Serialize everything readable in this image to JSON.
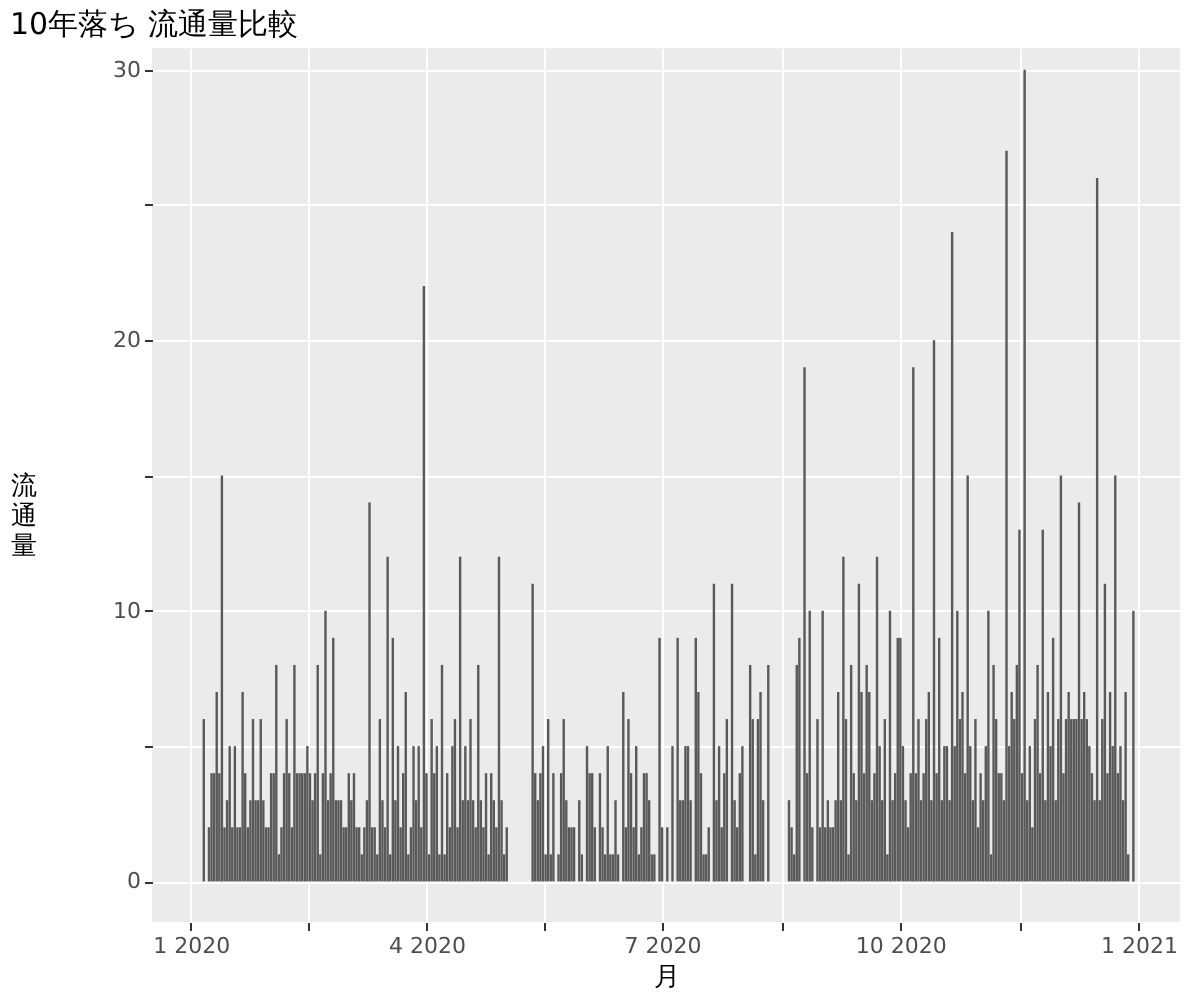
{
  "chart_data": {
    "type": "bar",
    "title": "10年落ち 流通量比較",
    "xlabel": "月",
    "ylabel": "流通量",
    "color": "#595959",
    "grid": true,
    "xlim": [
      "2019-12-17",
      "2021-01-17"
    ],
    "ylim": [
      -1.5,
      30.8
    ],
    "xticks": [
      {
        "value": "2020-01-01",
        "label": "1 2020"
      },
      {
        "value": "2020-02-15",
        "label": null
      },
      {
        "value": "2020-04-01",
        "label": "4 2020"
      },
      {
        "value": "2020-05-16",
        "label": null
      },
      {
        "value": "2020-07-01",
        "label": "7 2020"
      },
      {
        "value": "2020-08-16",
        "label": null
      },
      {
        "value": "2020-10-01",
        "label": "10 2020"
      },
      {
        "value": "2020-11-16",
        "label": null
      },
      {
        "value": "2021-01-01",
        "label": "1 2021"
      }
    ],
    "yticks": [
      0,
      {
        "value": 5,
        "label": null
      },
      10,
      {
        "value": 15,
        "label": null
      },
      20,
      {
        "value": 25,
        "label": null
      },
      30
    ],
    "x": [
      "2020-01-06",
      "2020-01-08",
      "2020-01-09",
      "2020-01-10",
      "2020-01-11",
      "2020-01-12",
      "2020-01-13",
      "2020-01-14",
      "2020-01-15",
      "2020-01-16",
      "2020-01-17",
      "2020-01-18",
      "2020-01-19",
      "2020-01-20",
      "2020-01-21",
      "2020-01-22",
      "2020-01-23",
      "2020-01-24",
      "2020-01-25",
      "2020-01-26",
      "2020-01-27",
      "2020-01-28",
      "2020-01-29",
      "2020-01-30",
      "2020-01-31",
      "2020-02-01",
      "2020-02-02",
      "2020-02-03",
      "2020-02-04",
      "2020-02-05",
      "2020-02-06",
      "2020-02-07",
      "2020-02-08",
      "2020-02-09",
      "2020-02-10",
      "2020-02-11",
      "2020-02-12",
      "2020-02-13",
      "2020-02-14",
      "2020-02-15",
      "2020-02-16",
      "2020-02-17",
      "2020-02-18",
      "2020-02-19",
      "2020-02-20",
      "2020-02-21",
      "2020-02-22",
      "2020-02-23",
      "2020-02-24",
      "2020-02-25",
      "2020-02-26",
      "2020-02-27",
      "2020-02-28",
      "2020-02-29",
      "2020-03-01",
      "2020-03-02",
      "2020-03-03",
      "2020-03-04",
      "2020-03-05",
      "2020-03-06",
      "2020-03-07",
      "2020-03-08",
      "2020-03-09",
      "2020-03-10",
      "2020-03-11",
      "2020-03-12",
      "2020-03-13",
      "2020-03-14",
      "2020-03-15",
      "2020-03-16",
      "2020-03-17",
      "2020-03-18",
      "2020-03-19",
      "2020-03-20",
      "2020-03-21",
      "2020-03-22",
      "2020-03-23",
      "2020-03-24",
      "2020-03-25",
      "2020-03-26",
      "2020-03-27",
      "2020-03-28",
      "2020-03-29",
      "2020-03-30",
      "2020-03-31",
      "2020-04-01",
      "2020-04-02",
      "2020-04-03",
      "2020-04-04",
      "2020-04-05",
      "2020-04-06",
      "2020-04-07",
      "2020-04-08",
      "2020-04-09",
      "2020-04-10",
      "2020-04-11",
      "2020-04-12",
      "2020-04-13",
      "2020-04-14",
      "2020-04-15",
      "2020-04-16",
      "2020-04-17",
      "2020-04-18",
      "2020-04-19",
      "2020-04-20",
      "2020-04-21",
      "2020-04-22",
      "2020-04-23",
      "2020-04-24",
      "2020-04-25",
      "2020-04-26",
      "2020-04-27",
      "2020-04-28",
      "2020-04-29",
      "2020-04-30",
      "2020-05-01",
      "2020-05-02",
      "2020-05-12",
      "2020-05-13",
      "2020-05-14",
      "2020-05-15",
      "2020-05-16",
      "2020-05-17",
      "2020-05-18",
      "2020-05-19",
      "2020-05-20",
      "2020-05-22",
      "2020-05-23",
      "2020-05-24",
      "2020-05-25",
      "2020-05-26",
      "2020-05-27",
      "2020-05-28",
      "2020-05-30",
      "2020-05-31",
      "2020-06-02",
      "2020-06-03",
      "2020-06-04",
      "2020-06-05",
      "2020-06-07",
      "2020-06-08",
      "2020-06-09",
      "2020-06-10",
      "2020-06-11",
      "2020-06-12",
      "2020-06-13",
      "2020-06-14",
      "2020-06-16",
      "2020-06-17",
      "2020-06-18",
      "2020-06-19",
      "2020-06-20",
      "2020-06-21",
      "2020-06-22",
      "2020-06-23",
      "2020-06-24",
      "2020-06-25",
      "2020-06-26",
      "2020-06-27",
      "2020-06-28",
      "2020-06-30",
      "2020-07-01",
      "2020-07-03",
      "2020-07-05",
      "2020-07-07",
      "2020-07-08",
      "2020-07-09",
      "2020-07-10",
      "2020-07-11",
      "2020-07-12",
      "2020-07-14",
      "2020-07-15",
      "2020-07-16",
      "2020-07-17",
      "2020-07-18",
      "2020-07-19",
      "2020-07-21",
      "2020-07-22",
      "2020-07-23",
      "2020-07-24",
      "2020-07-25",
      "2020-07-26",
      "2020-07-28",
      "2020-07-29",
      "2020-07-30",
      "2020-07-31",
      "2020-08-01",
      "2020-08-04",
      "2020-08-05",
      "2020-08-06",
      "2020-08-07",
      "2020-08-08",
      "2020-08-09",
      "2020-08-11",
      "2020-08-19",
      "2020-08-20",
      "2020-08-21",
      "2020-08-22",
      "2020-08-23",
      "2020-08-25",
      "2020-08-26",
      "2020-08-27",
      "2020-08-28",
      "2020-08-30",
      "2020-08-31",
      "2020-09-01",
      "2020-09-02",
      "2020-09-03",
      "2020-09-04",
      "2020-09-05",
      "2020-09-06",
      "2020-09-07",
      "2020-09-08",
      "2020-09-09",
      "2020-09-10",
      "2020-09-11",
      "2020-09-12",
      "2020-09-13",
      "2020-09-14",
      "2020-09-15",
      "2020-09-16",
      "2020-09-17",
      "2020-09-18",
      "2020-09-19",
      "2020-09-20",
      "2020-09-21",
      "2020-09-22",
      "2020-09-23",
      "2020-09-24",
      "2020-09-25",
      "2020-09-26",
      "2020-09-27",
      "2020-09-28",
      "2020-09-29",
      "2020-09-30",
      "2020-10-01",
      "2020-10-02",
      "2020-10-03",
      "2020-10-04",
      "2020-10-05",
      "2020-10-06",
      "2020-10-07",
      "2020-10-08",
      "2020-10-09",
      "2020-10-10",
      "2020-10-11",
      "2020-10-12",
      "2020-10-13",
      "2020-10-14",
      "2020-10-15",
      "2020-10-16",
      "2020-10-17",
      "2020-10-18",
      "2020-10-19",
      "2020-10-20",
      "2020-10-21",
      "2020-10-22",
      "2020-10-23",
      "2020-10-24",
      "2020-10-25",
      "2020-10-26",
      "2020-10-27",
      "2020-10-28",
      "2020-10-29",
      "2020-10-30",
      "2020-10-31",
      "2020-11-01",
      "2020-11-02",
      "2020-11-03",
      "2020-11-04",
      "2020-11-05",
      "2020-11-06",
      "2020-11-07",
      "2020-11-08",
      "2020-11-09",
      "2020-11-10",
      "2020-11-11",
      "2020-11-12",
      "2020-11-13",
      "2020-11-14",
      "2020-11-15",
      "2020-11-16",
      "2020-11-17",
      "2020-11-18",
      "2020-11-19",
      "2020-11-20",
      "2020-11-21",
      "2020-11-22",
      "2020-11-23",
      "2020-11-24",
      "2020-11-25",
      "2020-11-26",
      "2020-11-27",
      "2020-11-28",
      "2020-11-29",
      "2020-11-30",
      "2020-12-01",
      "2020-12-02",
      "2020-12-03",
      "2020-12-04",
      "2020-12-05",
      "2020-12-06",
      "2020-12-07",
      "2020-12-08",
      "2020-12-09",
      "2020-12-10",
      "2020-12-11",
      "2020-12-12",
      "2020-12-13",
      "2020-12-14",
      "2020-12-15",
      "2020-12-16",
      "2020-12-17",
      "2020-12-18",
      "2020-12-19",
      "2020-12-20",
      "2020-12-21",
      "2020-12-22",
      "2020-12-23",
      "2020-12-24",
      "2020-12-25",
      "2020-12-26",
      "2020-12-27",
      "2020-12-28",
      "2020-12-30"
    ],
    "values": [
      6,
      2,
      4,
      4,
      7,
      4,
      15,
      2,
      3,
      5,
      2,
      5,
      2,
      2,
      7,
      4,
      2,
      3,
      6,
      3,
      3,
      6,
      3,
      2,
      2,
      4,
      4,
      8,
      1,
      2,
      4,
      6,
      4,
      2,
      8,
      4,
      4,
      4,
      4,
      5,
      4,
      3,
      4,
      8,
      1,
      4,
      10,
      3,
      4,
      9,
      3,
      3,
      3,
      2,
      2,
      4,
      3,
      4,
      2,
      2,
      1,
      2,
      3,
      14,
      2,
      2,
      1,
      6,
      3,
      2,
      12,
      1,
      9,
      3,
      5,
      2,
      4,
      7,
      1,
      2,
      5,
      3,
      5,
      2,
      22,
      4,
      1,
      6,
      4,
      5,
      1,
      8,
      1,
      4,
      2,
      5,
      6,
      2,
      12,
      3,
      5,
      3,
      6,
      3,
      2,
      8,
      3,
      2,
      4,
      1,
      4,
      3,
      2,
      12,
      3,
      1,
      2,
      11,
      4,
      3,
      4,
      5,
      1,
      6,
      1,
      4,
      1,
      4,
      6,
      3,
      2,
      2,
      2,
      3,
      1,
      5,
      4,
      4,
      2,
      4,
      2,
      1,
      5,
      1,
      1,
      3,
      1,
      7,
      2,
      6,
      4,
      2,
      5,
      1,
      2,
      4,
      4,
      3,
      1,
      1,
      9,
      2,
      2,
      5,
      9,
      3,
      3,
      5,
      5,
      3,
      9,
      7,
      4,
      1,
      1,
      2,
      11,
      3,
      5,
      2,
      4,
      6,
      11,
      3,
      2,
      4,
      5,
      8,
      6,
      1,
      6,
      7,
      3,
      8,
      3,
      2,
      1,
      8,
      9,
      19,
      4,
      10,
      2,
      6,
      2,
      10,
      2,
      3,
      2,
      2,
      3,
      7,
      3,
      12,
      6,
      1,
      8,
      4,
      3,
      11,
      7,
      4,
      8,
      7,
      3,
      4,
      12,
      5,
      3,
      6,
      1,
      10,
      3,
      4,
      9,
      9,
      5,
      3,
      2,
      4,
      19,
      4,
      6,
      3,
      4,
      6,
      7,
      3,
      20,
      4,
      9,
      3,
      5,
      5,
      3,
      24,
      5,
      10,
      6,
      7,
      4,
      15,
      5,
      3,
      6,
      2,
      4,
      3,
      5,
      10,
      1,
      8,
      6,
      4,
      4,
      3,
      27,
      5,
      7,
      6,
      8,
      13,
      4,
      30,
      3,
      5,
      2,
      6,
      8,
      4,
      13,
      3,
      7,
      5,
      9,
      3,
      6,
      15,
      4,
      6,
      7,
      6,
      6,
      6,
      14,
      6,
      7,
      6,
      5,
      4,
      3,
      26,
      3,
      6,
      11,
      4,
      7,
      5,
      15,
      4,
      5,
      3,
      7,
      1,
      10
    ]
  }
}
